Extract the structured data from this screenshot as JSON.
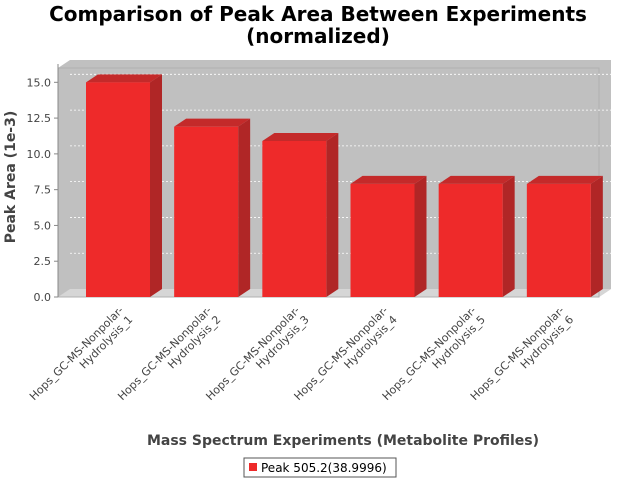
{
  "chart_data": {
    "type": "bar",
    "title": "Comparison of Peak Area Between Experiments",
    "subtitle": "(normalized)",
    "xlabel": "Mass Spectrum Experiments (Metabolite Profiles)",
    "ylabel": "Peak Area (1e-3)",
    "categories": [
      [
        "Hops_GC-MS-Nonpolar-",
        "Hydrolysis_1"
      ],
      [
        "Hops_GC-MS-Nonpolar-",
        "Hydrolysis_2"
      ],
      [
        "Hops_GC-MS-Nonpolar-",
        "Hydrolysis_3"
      ],
      [
        "Hops_GC-MS-Nonpolar-",
        "Hydrolysis_4"
      ],
      [
        "Hops_GC-MS-Nonpolar-",
        "Hydrolysis_5"
      ],
      [
        "Hops_GC-MS-Nonpolar-",
        "Hydrolysis_6"
      ]
    ],
    "series": [
      {
        "name": "Peak 505.2(38.9996)",
        "color": "#ee2a2a",
        "values": [
          15.0,
          11.9,
          10.9,
          7.9,
          7.9,
          7.9
        ]
      }
    ],
    "ylim": [
      0,
      16.0
    ],
    "yticks": [
      "0.0",
      "2.5",
      "5.0",
      "7.5",
      "10.0",
      "12.5",
      "15.0"
    ],
    "grid": true,
    "legend_position": "bottom"
  }
}
